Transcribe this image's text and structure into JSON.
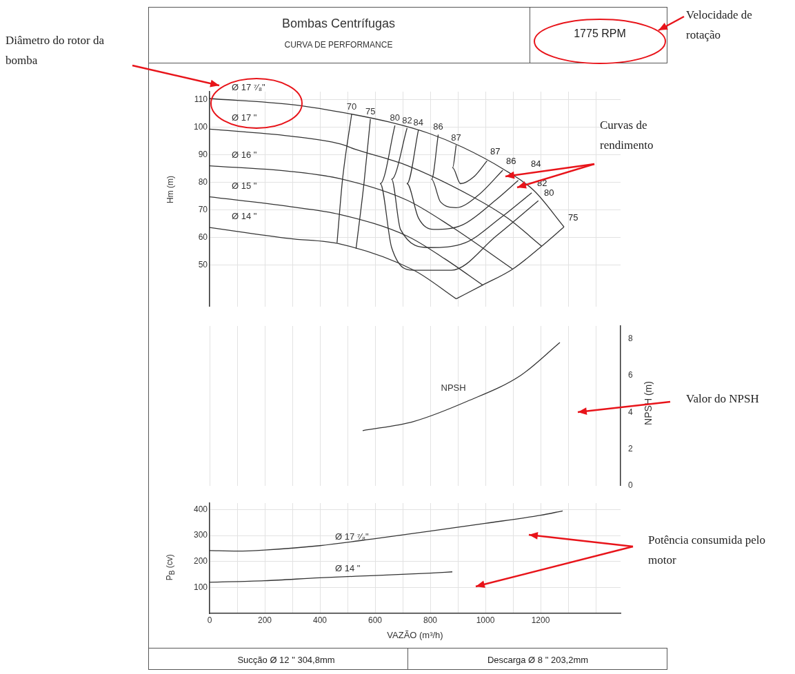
{
  "chart_data": [
    {
      "type": "line",
      "title": "Bombas Centrífugas",
      "subtitle": "CURVA DE PERFORMANCE",
      "ylabel": "Hm (m)",
      "marker": "none",
      "line_style": "solid",
      "grid": true,
      "tick_labels": "y",
      "xlim": [
        0,
        1490
      ],
      "xticks": [
        0,
        {
          "value": 100,
          "label": null
        },
        200,
        {
          "value": 300,
          "label": null
        },
        400,
        {
          "value": 500,
          "label": null
        },
        600,
        {
          "value": 700,
          "label": null
        },
        800,
        {
          "value": 900,
          "label": null
        },
        1000,
        {
          "value": 1100,
          "label": null
        },
        1200,
        {
          "value": 1300,
          "label": null
        },
        {
          "value": 1400,
          "label": null
        }
      ],
      "ylim": [
        35,
        113
      ],
      "yticks": [
        50,
        60,
        70,
        80,
        90,
        100,
        110
      ],
      "series": [
        {
          "name": "Ø 17 ⁷⁄₈\"",
          "color": "#333333",
          "x": [
            0,
            300,
            474,
            650,
            797,
            918,
            1063,
            1176,
            1285
          ],
          "values": [
            110.5,
            108.3,
            105.6,
            102,
            97.8,
            92.8,
            85,
            77.1,
            63.9
          ]
        },
        {
          "name": "Ø 17 \"",
          "color": "#333333",
          "x": [
            0,
            289,
            474,
            530,
            716,
            958,
            1079,
            1204
          ],
          "values": [
            99.4,
            96.9,
            94,
            92,
            86.2,
            74.6,
            67.2,
            56.9
          ]
        },
        {
          "name": "Ø 16 \"",
          "color": "#333333",
          "x": [
            0,
            289,
            474,
            716,
            878,
            1099
          ],
          "values": [
            86.1,
            84.1,
            81.4,
            73.6,
            63.9,
            48.6
          ]
        },
        {
          "name": "Ø 15 \"",
          "color": "#333333",
          "x": [
            0,
            289,
            474,
            716,
            853,
            990
          ],
          "values": [
            74.8,
            71.3,
            68.4,
            60.6,
            52.3,
            42.8
          ]
        },
        {
          "name": "Ø 14 \"",
          "color": "#333333",
          "x": [
            0,
            289,
            474,
            740,
            894
          ],
          "values": [
            63.7,
            59.7,
            57.7,
            48.2,
            37.8
          ]
        },
        {
          "name": "70",
          "color": "#333333",
          "x": [
            515,
            482,
            462
          ],
          "values": [
            104.8,
            81.2,
            58.1
          ]
        },
        {
          "name": "75",
          "color": "#333333",
          "x": [
            583,
            560,
            531,
            null,
            1285,
            1204,
            1099,
            990,
            894
          ],
          "values": [
            103.1,
            80,
            56,
            null,
            63.9,
            56.9,
            48.6,
            42.8,
            37.8
          ]
        },
        {
          "name": "80",
          "color": "#333333",
          "x": [
            672,
            619,
            660,
            740,
            877,
            1039,
            1192
          ],
          "values": [
            100.7,
            79.6,
            56.4,
            48.2,
            48.2,
            60.6,
            73.4
          ]
        },
        {
          "name": "82",
          "color": "#333333",
          "x": [
            716,
            660,
            692,
            797,
            926,
            1055,
            1168
          ],
          "values": [
            99.8,
            81.2,
            63,
            56.4,
            58.1,
            67.2,
            76.3
          ]
        },
        {
          "name": "84",
          "color": "#333333",
          "x": [
            757,
            716,
            757,
            813,
            918,
            1039,
            1119
          ],
          "values": [
            99,
            79.6,
            67.2,
            63,
            64.7,
            73.8,
            80.8
          ]
        },
        {
          "name": "86",
          "color": "#333333",
          "x": [
            829,
            805,
            837,
            894,
            974,
            1063
          ],
          "values": [
            97.4,
            81.2,
            73,
            70.9,
            75.4,
            84.5
          ]
        },
        {
          "name": "87",
          "color": "#333333",
          "x": [
            894,
            881,
            910,
            958,
            1006
          ],
          "values": [
            93.6,
            85.4,
            79.6,
            82.1,
            87.9
          ]
        }
      ],
      "annotations": [
        "1775 RPM",
        "Velocidade de rotação",
        "Diâmetro do rotor da bomba",
        "Curvas de rendimento",
        "87",
        "86",
        "84",
        "82",
        "80",
        "75"
      ]
    },
    {
      "type": "line",
      "y2label": "NPSH (m)",
      "marker": "none",
      "line_style": "solid",
      "grid": true,
      "tick_labels": "y",
      "xlim": [
        0,
        1490
      ],
      "xticks": [
        0,
        {
          "value": 100,
          "label": null
        },
        200,
        {
          "value": 300,
          "label": null
        },
        400,
        {
          "value": 500,
          "label": null
        },
        600,
        {
          "value": 700,
          "label": null
        },
        800,
        {
          "value": 900,
          "label": null
        },
        1000,
        {
          "value": 1100,
          "label": null
        },
        1200,
        {
          "value": 1300,
          "label": null
        },
        {
          "value": 1400,
          "label": null
        }
      ],
      "y2lim": [
        0,
        8.7
      ],
      "y2ticks": [
        0,
        2,
        4,
        6,
        8
      ],
      "series": [
        {
          "name": "NPSH",
          "color": "#333333",
          "axis": "y2",
          "x": [
            555,
            740,
            934,
            1127,
            1270
          ],
          "values": [
            3,
            3.5,
            4.6,
            6,
            7.8
          ]
        }
      ],
      "annotations": [
        "Valor do NPSH"
      ]
    },
    {
      "type": "line",
      "xlabel": "VAZÃO (m³/h)",
      "ylabel": "P$_{B}$ (cv)",
      "marker": "none",
      "line_style": "solid",
      "grid": true,
      "xlim": [
        0,
        1490
      ],
      "xticks": [
        0,
        {
          "value": 100,
          "label": null
        },
        200,
        {
          "value": 300,
          "label": null
        },
        400,
        {
          "value": 500,
          "label": null
        },
        600,
        {
          "value": 700,
          "label": null
        },
        800,
        {
          "value": 900,
          "label": null
        },
        1000,
        {
          "value": 1100,
          "label": null
        },
        1200,
        {
          "value": 1300,
          "label": null
        },
        {
          "value": 1400,
          "label": null
        }
      ],
      "ylim": [
        0,
        425
      ],
      "yticks": [
        100,
        200,
        300,
        400
      ],
      "series": [
        {
          "name": "Ø 17 ⁷⁄₈\"",
          "color": "#333333",
          "x": [
            0,
            100,
            200,
            400,
            600,
            800,
            1000,
            1200,
            1280
          ],
          "values": [
            242,
            240,
            244,
            261,
            288,
            317,
            347,
            378,
            395
          ]
        },
        {
          "name": "Ø 14 \"",
          "color": "#333333",
          "x": [
            0,
            200,
            400,
            600,
            800,
            880
          ],
          "values": [
            120,
            126,
            137,
            146,
            155,
            160
          ]
        }
      ],
      "annotations": [
        "Potência consumida pelo motor",
        "Sucção Ø 12 \" 304,8mm",
        "Descarga Ø 8 \" 203,2mm"
      ]
    }
  ]
}
